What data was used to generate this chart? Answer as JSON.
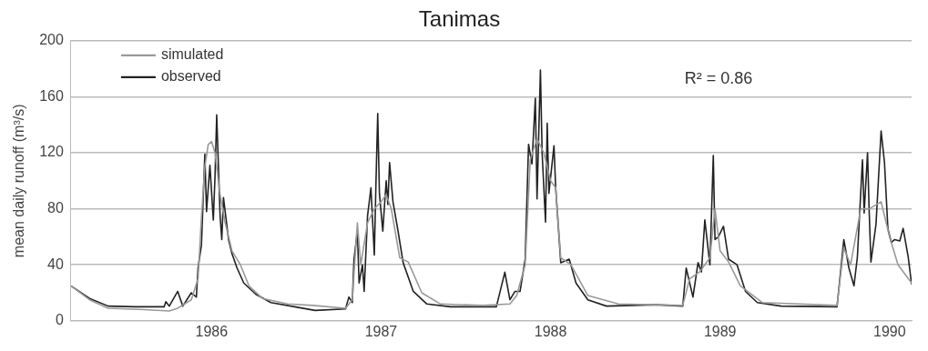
{
  "chart_data": {
    "type": "line",
    "title": "Tanimas",
    "ylabel": "mean daily runoff (m³/s)",
    "annotations": [
      "R² = 0.86"
    ],
    "xlim": [
      1985.67,
      1990.63
    ],
    "xticks": [
      {
        "value": 1986.5,
        "label": "1986"
      },
      {
        "value": 1987.5,
        "label": "1987"
      },
      {
        "value": 1988.5,
        "label": "1988"
      },
      {
        "value": 1989.5,
        "label": "1989"
      },
      {
        "value": 1990.5,
        "label": "1990"
      }
    ],
    "ylim": [
      0,
      200
    ],
    "yticks": [
      0,
      40,
      80,
      120,
      160,
      200
    ],
    "grid": "y",
    "legend": "top left",
    "marker": "none",
    "line_style": "solid",
    "series": [
      {
        "name": "simulated",
        "color": "#999999",
        "x": [
          1985.67,
          1985.78,
          1985.89,
          1986.1,
          1986.25,
          1986.3,
          1986.38,
          1986.42,
          1986.44,
          1986.46,
          1986.48,
          1986.5,
          1986.52,
          1986.55,
          1986.58,
          1986.62,
          1986.67,
          1986.72,
          1986.8,
          1986.95,
          1987.1,
          1987.29,
          1987.33,
          1987.36,
          1987.38,
          1987.42,
          1987.46,
          1987.5,
          1987.53,
          1987.56,
          1987.61,
          1987.66,
          1987.74,
          1987.85,
          1988.1,
          1988.26,
          1988.3,
          1988.35,
          1988.38,
          1988.42,
          1988.46,
          1988.5,
          1988.53,
          1988.56,
          1988.62,
          1988.72,
          1988.9,
          1989.28,
          1989.32,
          1989.38,
          1989.44,
          1989.47,
          1989.5,
          1989.55,
          1989.62,
          1989.75,
          1990.19,
          1990.23,
          1990.27,
          1990.33,
          1990.38,
          1990.45,
          1990.5,
          1990.55,
          1990.63
        ],
        "values": [
          25,
          15,
          9,
          8,
          7,
          9,
          15,
          30,
          74,
          110,
          126,
          128,
          120,
          90,
          70,
          50,
          40,
          25,
          16,
          12,
          11,
          9,
          15,
          70,
          40,
          70,
          80,
          85,
          90,
          80,
          45,
          42,
          20,
          12,
          11,
          12,
          18,
          40,
          115,
          130,
          120,
          100,
          95,
          45,
          40,
          18,
          12,
          11,
          30,
          35,
          45,
          80,
          50,
          42,
          25,
          13,
          11,
          52,
          40,
          80,
          80,
          85,
          60,
          40,
          27
        ]
      },
      {
        "name": "observed",
        "color": "#222222",
        "x": [
          1985.67,
          1985.78,
          1985.89,
          1986.05,
          1986.22,
          1986.23,
          1986.25,
          1986.3,
          1986.33,
          1986.38,
          1986.41,
          1986.42,
          1986.44,
          1986.46,
          1986.47,
          1986.49,
          1986.51,
          1986.52,
          1986.53,
          1986.55,
          1986.56,
          1986.57,
          1986.6,
          1986.62,
          1986.65,
          1986.69,
          1986.76,
          1986.85,
          1986.99,
          1987.11,
          1987.29,
          1987.31,
          1987.33,
          1987.34,
          1987.36,
          1987.37,
          1987.39,
          1987.4,
          1987.42,
          1987.44,
          1987.46,
          1987.47,
          1987.48,
          1987.49,
          1987.51,
          1987.53,
          1987.54,
          1987.55,
          1987.57,
          1987.6,
          1987.63,
          1987.69,
          1987.77,
          1987.91,
          1988.18,
          1988.23,
          1988.26,
          1988.29,
          1988.32,
          1988.35,
          1988.37,
          1988.39,
          1988.41,
          1988.42,
          1988.44,
          1988.45,
          1988.47,
          1988.48,
          1988.49,
          1988.52,
          1988.53,
          1988.56,
          1988.61,
          1988.65,
          1988.72,
          1988.83,
          1989.12,
          1989.28,
          1989.3,
          1989.34,
          1989.37,
          1989.39,
          1989.41,
          1989.44,
          1989.46,
          1989.47,
          1989.49,
          1989.52,
          1989.55,
          1989.6,
          1989.65,
          1989.72,
          1989.86,
          1990.19,
          1990.23,
          1990.26,
          1990.29,
          1990.31,
          1990.34,
          1990.35,
          1990.37,
          1990.38,
          1990.39,
          1990.42,
          1990.45,
          1990.47,
          1990.49,
          1990.51,
          1990.53,
          1990.56,
          1990.58,
          1990.61,
          1990.63
        ],
        "values": [
          25,
          16,
          10.5,
          10,
          10,
          13.6,
          10.5,
          21,
          10.5,
          20,
          17,
          37.7,
          54,
          119,
          78,
          111,
          72,
          103,
          147,
          75,
          58,
          88,
          58,
          48,
          37.7,
          27,
          19,
          13,
          10,
          7.4,
          8.5,
          17,
          13,
          44,
          64,
          27,
          40,
          21,
          75,
          95,
          47,
          100,
          148,
          91,
          64,
          100,
          83,
          113,
          85,
          64,
          41.5,
          21,
          12,
          10,
          10,
          34.7,
          15,
          21,
          21,
          44,
          126,
          112,
          159,
          87,
          179,
          120,
          70.5,
          141,
          91,
          125,
          95,
          41.5,
          44,
          27,
          15,
          10.5,
          11.5,
          10.5,
          37.7,
          17,
          41.5,
          35,
          72,
          40,
          118,
          58,
          60,
          67.5,
          44,
          40,
          21,
          13,
          10.5,
          10,
          58,
          37.7,
          25,
          45.5,
          115,
          77,
          120,
          77,
          42,
          69,
          135.6,
          113,
          66,
          56,
          58,
          57,
          66,
          45.5,
          26
        ]
      }
    ]
  }
}
